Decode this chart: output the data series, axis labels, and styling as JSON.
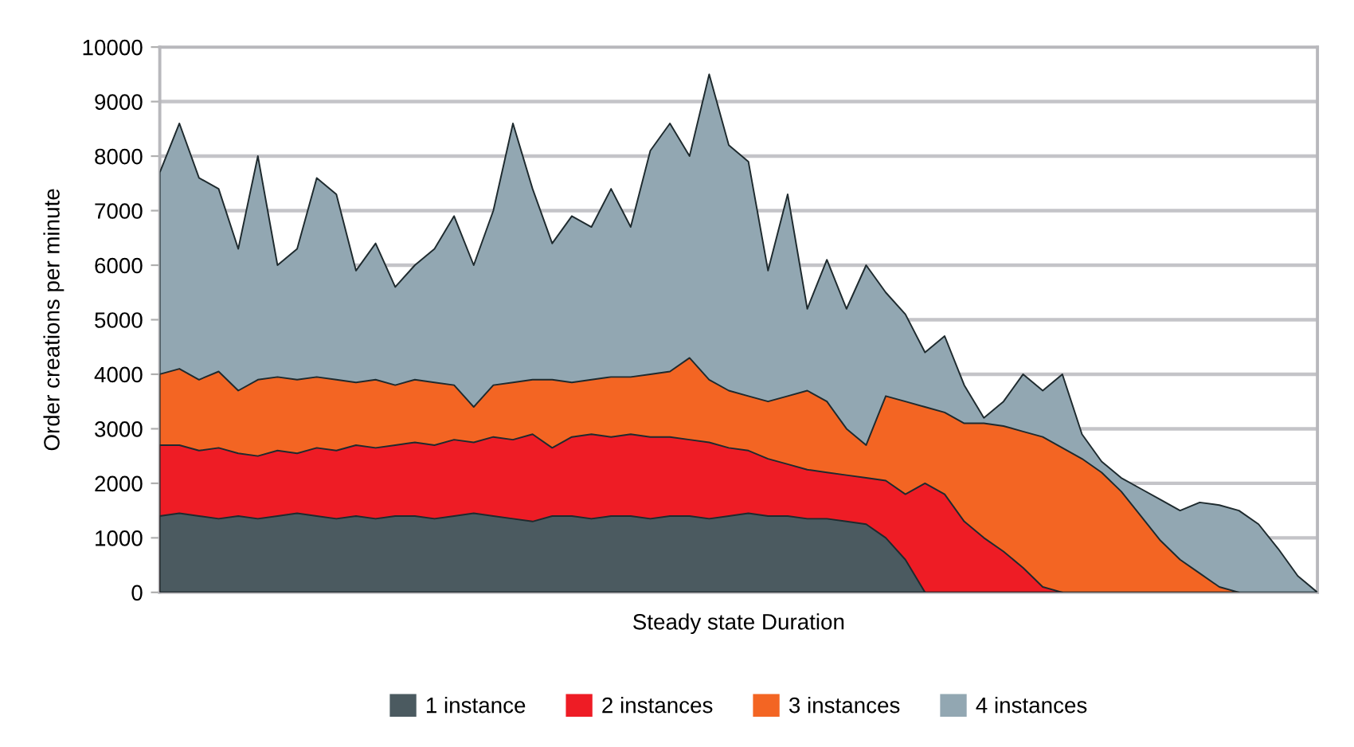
{
  "chart_data": {
    "type": "area",
    "xlabel": "Steady state Duration",
    "ylabel": "Order creations per minute",
    "categories": [
      null,
      null,
      null,
      null,
      null,
      null,
      null,
      null,
      null,
      null,
      null,
      null,
      null,
      null,
      null,
      null,
      null,
      null,
      null,
      null,
      null,
      null,
      null,
      null,
      null,
      null,
      null,
      null,
      null,
      null,
      null,
      null,
      null,
      null,
      null,
      null,
      null,
      null,
      null,
      null,
      null,
      null,
      null,
      null,
      null,
      null,
      null,
      null,
      null,
      null,
      null,
      null,
      null,
      null,
      null,
      null,
      null,
      null,
      null,
      null
    ],
    "series": [
      {
        "name": "1 instance",
        "color": "#4b5a60",
        "values": [
          1400,
          1450,
          1400,
          1350,
          1400,
          1350,
          1400,
          1450,
          1400,
          1350,
          1400,
          1350,
          1400,
          1400,
          1350,
          1400,
          1450,
          1400,
          1350,
          1300,
          1400,
          1400,
          1350,
          1400,
          1400,
          1350,
          1400,
          1400,
          1350,
          1400,
          1450,
          1400,
          1400,
          1350,
          1350,
          1300,
          1250,
          1000,
          600,
          0,
          null,
          null,
          null,
          null,
          null,
          null,
          null,
          null,
          null,
          null,
          null,
          null,
          null,
          null,
          null,
          null,
          null,
          null,
          null,
          null
        ]
      },
      {
        "name": "2 instances",
        "color": "#ee1c25",
        "values": [
          2700,
          2700,
          2600,
          2650,
          2550,
          2500,
          2600,
          2550,
          2650,
          2600,
          2700,
          2650,
          2700,
          2750,
          2700,
          2800,
          2750,
          2850,
          2800,
          2900,
          2650,
          2850,
          2900,
          2850,
          2900,
          2850,
          2850,
          2800,
          2750,
          2650,
          2600,
          2450,
          2350,
          2250,
          2200,
          2150,
          2100,
          2050,
          1800,
          2000,
          1800,
          1300,
          1000,
          750,
          450,
          100,
          0,
          null,
          null,
          null,
          null,
          null,
          null,
          null,
          null,
          null,
          null,
          null,
          null,
          null
        ]
      },
      {
        "name": "3 instances",
        "color": "#f36523",
        "values": [
          4000,
          4100,
          3900,
          4050,
          3700,
          3900,
          3950,
          3900,
          3950,
          3900,
          3850,
          3900,
          3800,
          3900,
          3850,
          3800,
          3400,
          3800,
          3850,
          3900,
          3900,
          3850,
          3900,
          3950,
          3950,
          4000,
          4050,
          4300,
          3900,
          3700,
          3600,
          3500,
          3600,
          3700,
          3500,
          3000,
          2700,
          3600,
          3500,
          3400,
          3300,
          3100,
          3100,
          3050,
          2950,
          2850,
          2650,
          2450,
          2200,
          1850,
          1400,
          950,
          600,
          350,
          100,
          0,
          null,
          null,
          null,
          null
        ]
      },
      {
        "name": "4 instances",
        "color": "#92a7b2",
        "values": [
          7700,
          8600,
          7600,
          7400,
          6300,
          8000,
          6000,
          6300,
          7600,
          7300,
          5900,
          6400,
          5600,
          6000,
          6300,
          6900,
          6000,
          7000,
          8600,
          7400,
          6400,
          6900,
          6700,
          7400,
          6700,
          8100,
          8600,
          8000,
          9500,
          8200,
          7900,
          5900,
          7300,
          5200,
          6100,
          5200,
          6000,
          5500,
          5100,
          4400,
          4700,
          3800,
          3200,
          3500,
          4000,
          3700,
          4000,
          2900,
          2400,
          2100,
          1900,
          1700,
          1500,
          1650,
          1600,
          1500,
          1250,
          800,
          300,
          0
        ]
      }
    ],
    "ylim": [
      0,
      10000
    ],
    "yticks": [
      0,
      1000,
      2000,
      3000,
      4000,
      5000,
      6000,
      7000,
      8000,
      9000,
      10000
    ],
    "grid": "y",
    "legend": "bottom"
  }
}
